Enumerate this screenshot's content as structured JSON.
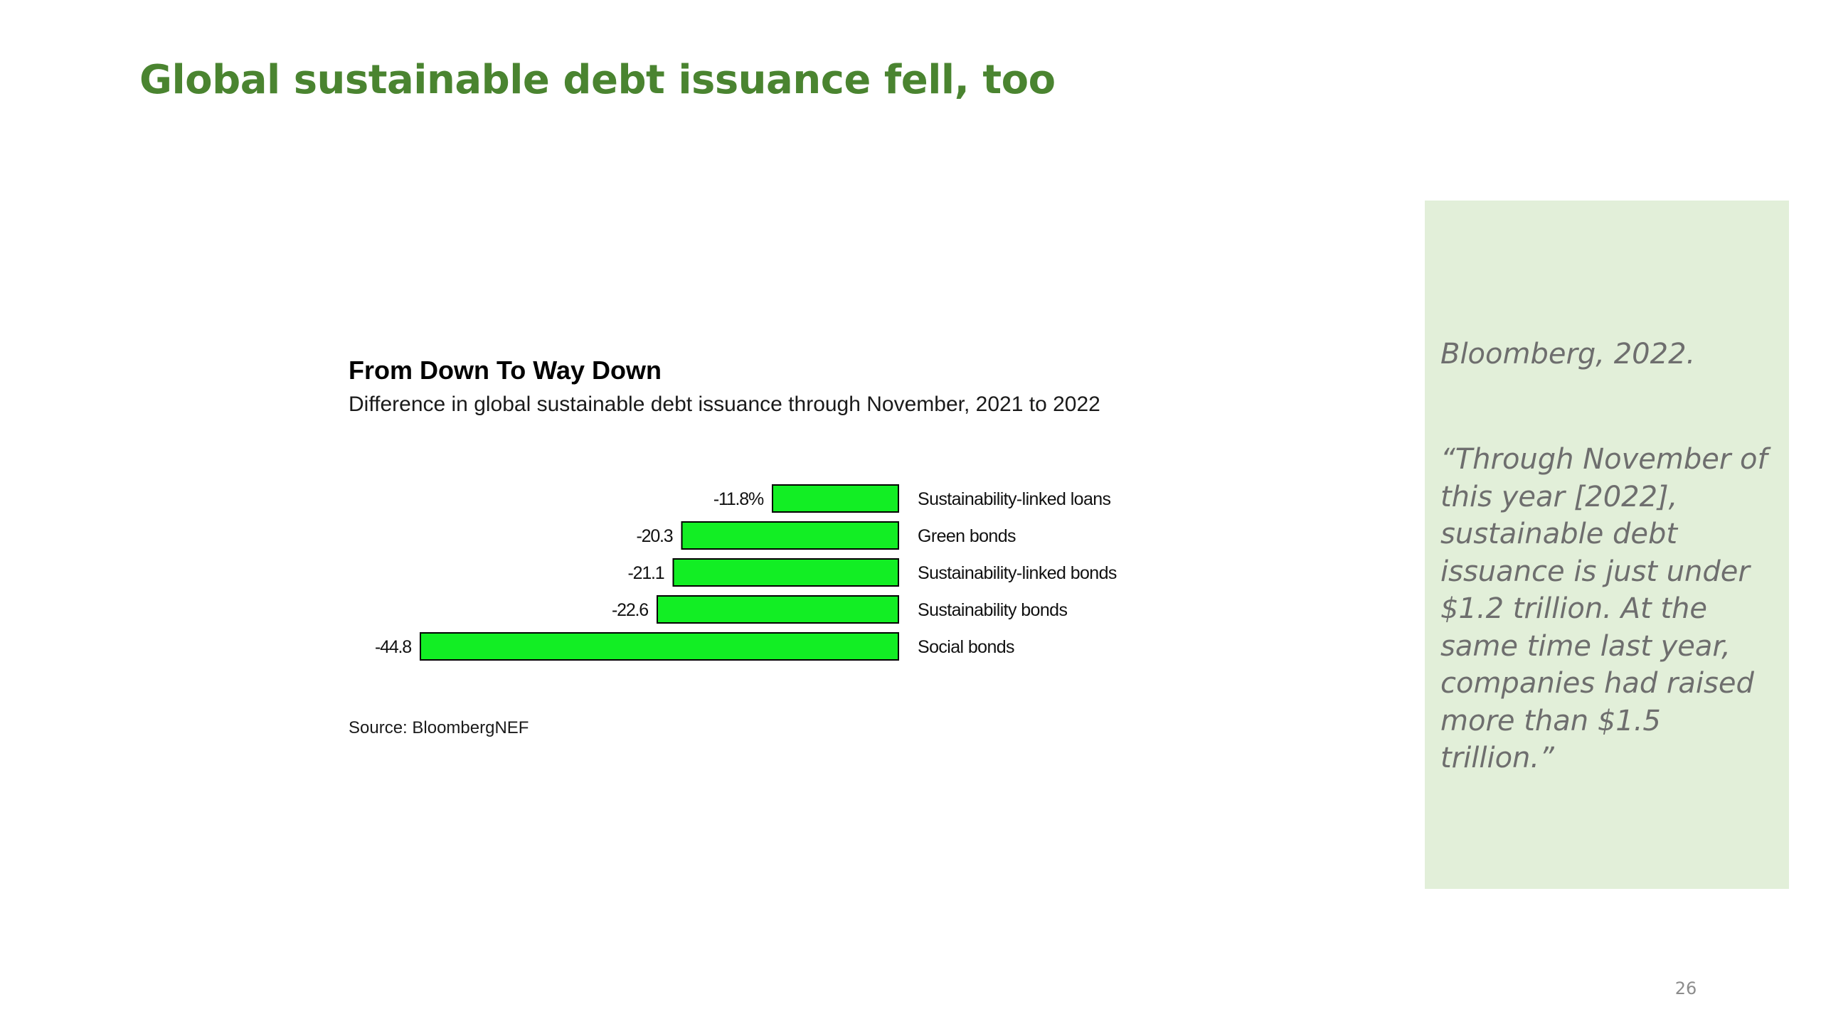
{
  "slide": {
    "title": "Global sustainable debt issuance fell, too",
    "page_number": "26"
  },
  "chart_data": {
    "type": "bar",
    "orientation": "horizontal",
    "title": "From Down To Way Down",
    "subtitle": "Difference in global sustainable debt issuance through November, 2021 to 2022",
    "categories": [
      "Sustainability-linked loans",
      "Green bonds",
      "Sustainability-linked bonds",
      "Sustainability bonds",
      "Social bonds"
    ],
    "values": [
      -11.8,
      -20.3,
      -21.1,
      -22.6,
      -44.8
    ],
    "value_labels": [
      "-11.8%",
      "-20.3",
      "-21.1",
      "-22.6",
      "-44.8"
    ],
    "unit": "%",
    "xlim": [
      -44.8,
      0
    ],
    "bar_color": "#12ee24",
    "bar_edge_color": "#000000",
    "grid": false,
    "legend": "none",
    "source": "Source: BloombergNEF"
  },
  "quote_panel": {
    "citation": "Bloomberg, 2022.",
    "quote": "“Through November of this year [2022], sustainable debt issuance is just under $1.2 trillion. At the same time last year, companies had raised more than $1.5 trillion.”",
    "background": "#e2efd9"
  }
}
